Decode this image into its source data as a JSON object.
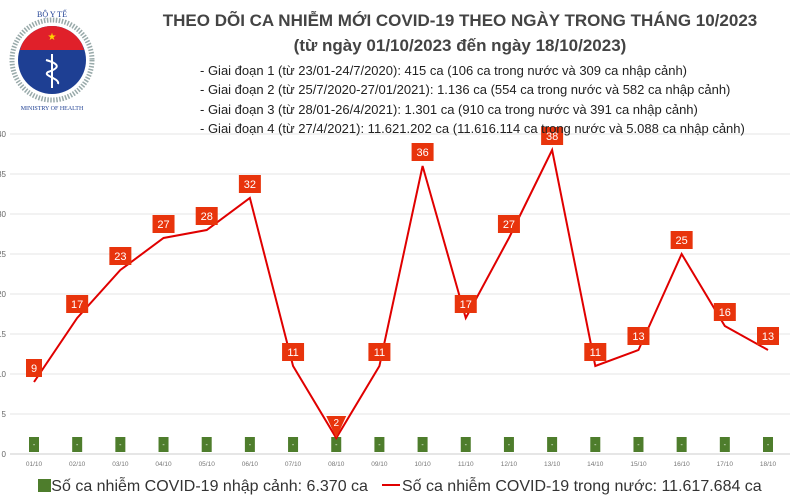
{
  "header": {
    "logo_text": "BỘ Y TẾ - MINISTRY OF HEALTH",
    "title": "THEO DÕI CA NHIỄM MỚI COVID-19 THEO NGÀY TRONG THÁNG 10/2023",
    "subtitle": "(từ ngày 01/10/2023 đến ngày 18/10/2023)",
    "notes": [
      "- Giai đoạn 1 (từ 23/01-24/7/2020): 415 ca (106 ca trong nước và 309 ca nhập cảnh)",
      "- Giai đoạn 2 (từ 25/7/2020-27/01/2021): 1.136 ca (554 ca trong nước và 582 ca nhập cảnh)",
      "- Giai đoạn 3 (từ 28/01-26/4/2021): 1.301 ca (910 ca trong nước và 391 ca nhập cảnh)",
      "- Giai đoạn 4 (từ 27/4/2021): 11.621.202 ca (11.616.114 ca trong nước và 5.088 ca nhập cảnh)"
    ]
  },
  "chart_data": {
    "type": "bar+line",
    "categories": [
      "01/10",
      "02/10",
      "03/10",
      "04/10",
      "05/10",
      "06/10",
      "07/10",
      "08/10",
      "09/10",
      "10/10",
      "11/10",
      "12/10",
      "13/10",
      "14/10",
      "15/10",
      "16/10",
      "17/10",
      "18/10"
    ],
    "series": [
      {
        "name": "Số ca nhiễm COVID-19 nhập cảnh: 6.370 ca",
        "type": "bar",
        "color": "#4e7d2c",
        "labels": [
          "-",
          "-",
          "-",
          "-",
          "-",
          "-",
          "-",
          "-",
          "-",
          "-",
          "-",
          "-",
          "-",
          "-",
          "-",
          "-",
          "-",
          "-"
        ]
      },
      {
        "name": "Số ca nhiễm COVID-19 trong nước: 11.617.684 ca",
        "type": "line",
        "color": "#e00000",
        "values": [
          9,
          17,
          23,
          27,
          28,
          32,
          11,
          2,
          11,
          36,
          17,
          27,
          38,
          11,
          13,
          25,
          16,
          13
        ]
      }
    ],
    "ylim": [
      0,
      40
    ],
    "yticks": [
      0,
      5,
      10,
      15,
      20,
      25,
      30,
      35,
      40
    ],
    "grid": true,
    "legend": "bottom"
  }
}
